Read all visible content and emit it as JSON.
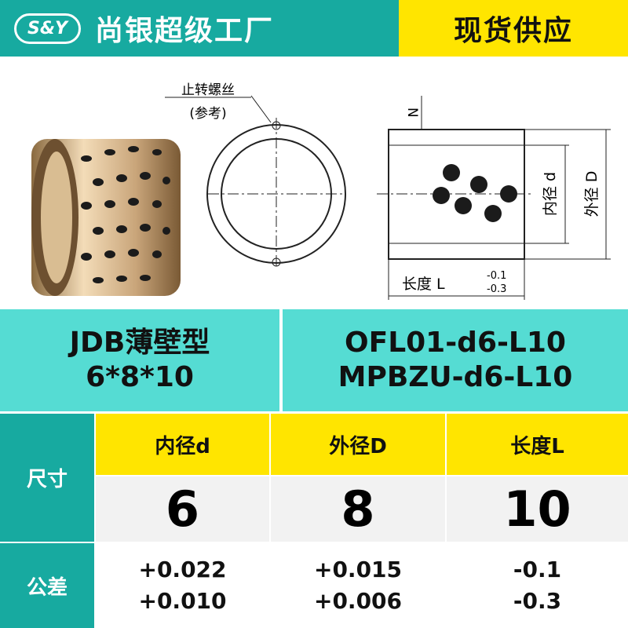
{
  "header": {
    "logo": "S&Y",
    "title": "尚银超级工厂",
    "badge": "现货供应"
  },
  "diagram": {
    "screw_label": "止转螺丝",
    "screw_note": "(参考)",
    "n_label": "N",
    "inner_label": "内径 d",
    "outer_label": "外径 D",
    "length_label": "长度 L",
    "length_tol_upper": "-0.1",
    "length_tol_lower": "-0.3"
  },
  "product": {
    "series": "JDB薄壁型",
    "size": "6*8*10",
    "codes": [
      "OFL01-d6-L10",
      "MPBZU-d6-L10"
    ]
  },
  "table": {
    "row_labels": [
      "尺寸",
      "公差"
    ],
    "columns": [
      "内径d",
      "外径D",
      "长度L"
    ],
    "values": [
      6,
      8,
      10
    ],
    "tolerances": [
      [
        "+0.022",
        "+0.010"
      ],
      [
        "+0.015",
        "+0.006"
      ],
      [
        "-0.1",
        "-0.3"
      ]
    ]
  }
}
